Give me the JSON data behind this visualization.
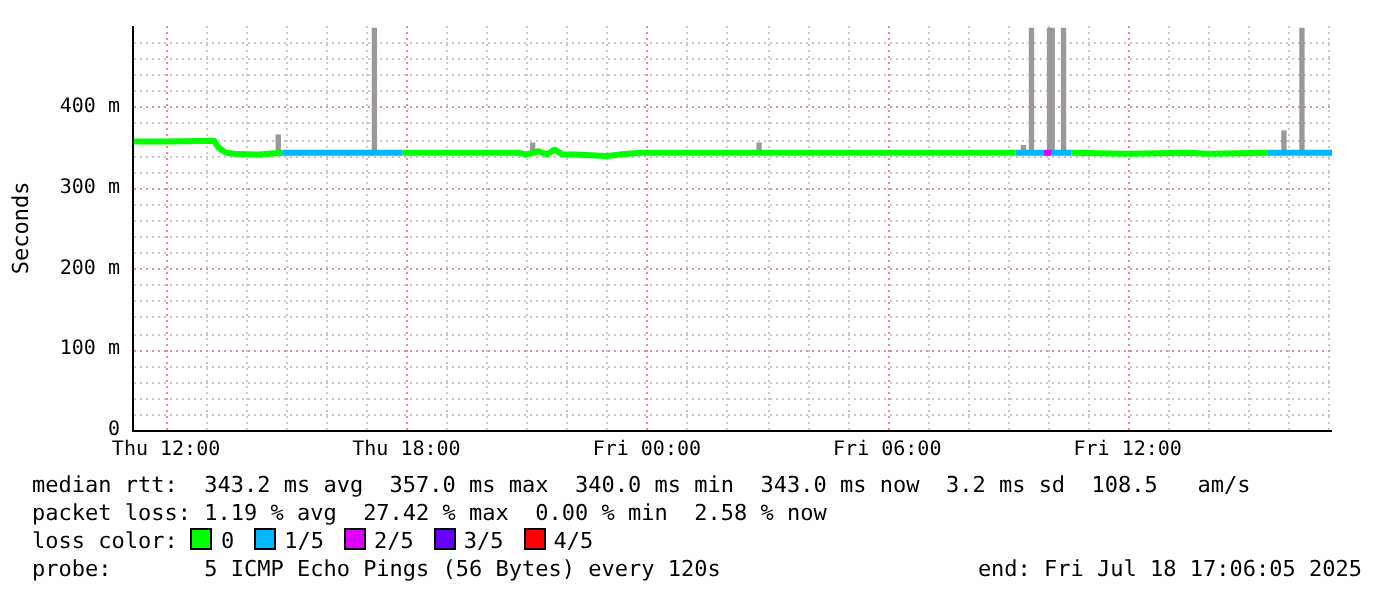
{
  "chart_data": {
    "type": "line",
    "ylabel": "Seconds",
    "legend_title": "loss color:",
    "legend": "bottom",
    "grid": true,
    "line_style": "solid",
    "marker": "none",
    "xlim": [
      "2025-07-17T11:12",
      "2025-07-18T17:06"
    ],
    "xticks": [
      {
        "value": "2025-07-17T12:00",
        "label": "Thu 12:00"
      },
      {
        "value": "2025-07-17T13:00",
        "label": null
      },
      {
        "value": "2025-07-17T14:00",
        "label": null
      },
      {
        "value": "2025-07-17T15:00",
        "label": null
      },
      {
        "value": "2025-07-17T16:00",
        "label": null
      },
      {
        "value": "2025-07-17T17:00",
        "label": null
      },
      {
        "value": "2025-07-17T18:00",
        "label": "Thu 18:00"
      },
      {
        "value": "2025-07-17T19:00",
        "label": null
      },
      {
        "value": "2025-07-17T20:00",
        "label": null
      },
      {
        "value": "2025-07-17T21:00",
        "label": null
      },
      {
        "value": "2025-07-17T22:00",
        "label": null
      },
      {
        "value": "2025-07-17T23:00",
        "label": null
      },
      {
        "value": "2025-07-18T00:00",
        "label": "Fri 00:00"
      },
      {
        "value": "2025-07-18T01:00",
        "label": null
      },
      {
        "value": "2025-07-18T02:00",
        "label": null
      },
      {
        "value": "2025-07-18T03:00",
        "label": null
      },
      {
        "value": "2025-07-18T04:00",
        "label": null
      },
      {
        "value": "2025-07-18T05:00",
        "label": null
      },
      {
        "value": "2025-07-18T06:00",
        "label": "Fri 06:00"
      },
      {
        "value": "2025-07-18T07:00",
        "label": null
      },
      {
        "value": "2025-07-18T08:00",
        "label": null
      },
      {
        "value": "2025-07-18T09:00",
        "label": null
      },
      {
        "value": "2025-07-18T10:00",
        "label": null
      },
      {
        "value": "2025-07-18T11:00",
        "label": null
      },
      {
        "value": "2025-07-18T12:00",
        "label": "Fri 12:00"
      },
      {
        "value": "2025-07-18T13:00",
        "label": null
      },
      {
        "value": "2025-07-18T14:00",
        "label": null
      },
      {
        "value": "2025-07-18T15:00",
        "label": null
      },
      {
        "value": "2025-07-18T16:00",
        "label": null
      },
      {
        "value": "2025-07-18T17:00",
        "label": null
      }
    ],
    "ylim": [
      0,
      500
    ],
    "yticks": [
      0,
      {
        "value": 20,
        "label": null
      },
      {
        "value": 40,
        "label": null
      },
      {
        "value": 60,
        "label": null
      },
      {
        "value": 80,
        "label": null
      },
      {
        "value": 100,
        "label": "100 m"
      },
      {
        "value": 120,
        "label": null
      },
      {
        "value": 140,
        "label": null
      },
      {
        "value": 160,
        "label": null
      },
      {
        "value": 180,
        "label": null
      },
      {
        "value": 200,
        "label": "200 m"
      },
      {
        "value": 220,
        "label": null
      },
      {
        "value": 240,
        "label": null
      },
      {
        "value": 260,
        "label": null
      },
      {
        "value": 280,
        "label": null
      },
      {
        "value": 300,
        "label": "300 m"
      },
      {
        "value": 320,
        "label": null
      },
      {
        "value": 340,
        "label": null
      },
      {
        "value": 360,
        "label": null
      },
      {
        "value": 380,
        "label": null
      },
      {
        "value": 400,
        "label": "400 m"
      },
      {
        "value": 420,
        "label": null
      },
      {
        "value": 440,
        "label": null
      },
      {
        "value": 460,
        "label": null
      },
      {
        "value": 480,
        "label": null
      }
    ],
    "series": [
      {
        "type": "bar",
        "color": "#999999",
        "x": [
          "2025-07-17T14:48",
          "2025-07-17T17:12",
          "2025-07-17T21:09",
          "2025-07-18T02:48",
          "2025-07-18T09:24",
          "2025-07-18T09:36",
          "2025-07-18T10:03",
          "2025-07-18T10:07",
          "2025-07-18T10:24",
          "2025-07-18T15:54",
          "2025-07-18T16:21"
        ],
        "base": [
          343,
          343,
          343,
          343,
          343,
          343,
          343,
          343,
          343,
          343,
          343
        ],
        "values": [
          22,
          154,
          12,
          12,
          9,
          154,
          154,
          154,
          154,
          27,
          154
        ]
      },
      {
        "name": "0",
        "color": "#00ff00",
        "x": [
          "2025-07-17T11:12",
          "2025-07-17T12:00",
          "2025-07-17T13:12",
          "2025-07-17T13:18",
          "2025-07-17T13:30",
          "2025-07-17T13:42",
          "2025-07-17T14:18",
          "2025-07-17T14:54",
          "2025-07-17T16:24",
          "2025-07-17T17:54",
          "2025-07-17T20:48",
          "2025-07-17T21:00",
          "2025-07-17T21:18",
          "2025-07-17T21:30",
          "2025-07-17T21:42",
          "2025-07-17T21:54",
          "2025-07-17T22:12",
          "2025-07-17T23:00",
          "2025-07-17T23:30",
          "2025-07-17T23:54",
          "2025-07-18T00:30",
          "2025-07-18T03:00",
          "2025-07-18T06:00",
          "2025-07-18T09:12",
          "2025-07-18T09:54",
          "2025-07-18T10:36",
          "2025-07-18T12:00",
          "2025-07-18T13:30",
          "2025-07-18T14:00",
          "2025-07-18T15:30"
        ],
        "values": [
          357,
          357,
          358,
          350,
          343,
          342,
          341,
          343,
          null,
          343,
          343,
          341,
          345,
          341,
          347,
          341,
          341,
          339,
          342,
          343,
          343,
          343,
          343,
          343,
          null,
          343,
          342,
          343,
          342,
          343
        ]
      },
      {
        "name": "1/5",
        "color": "#00b8ff",
        "x": [
          "2025-07-17T14:54",
          "2025-07-17T17:54",
          "2025-07-18T01:00",
          "2025-07-18T09:12",
          "2025-07-18T09:54",
          "2025-07-18T10:00",
          "2025-07-18T10:06",
          "2025-07-18T10:36",
          "2025-07-18T13:00",
          "2025-07-18T15:30",
          "2025-07-18T17:06"
        ],
        "values": [
          343,
          343,
          null,
          343,
          343,
          null,
          343,
          343,
          null,
          343,
          343
        ]
      },
      {
        "name": "2/5",
        "color": "#dd00ff",
        "x": [
          "2025-07-18T09:54",
          "2025-07-18T10:06"
        ],
        "values": [
          343,
          343
        ]
      },
      {
        "name": "3/5",
        "color": "#6600ff"
      },
      {
        "name": "4/5",
        "color": "#ff0000"
      }
    ],
    "annotations": [
      "median rtt:  343.2 ms avg  357.0 ms max  340.0 ms min  343.0 ms now  3.2 ms sd  108.5   am/s",
      "packet loss: 1.19 % avg  27.42 % max  0.00 % min  2.58 % now",
      "probe:       5 ICMP Echo Pings (56 Bytes) every 120s",
      "end: Fri Jul 18 17:06:05 2025"
    ]
  }
}
